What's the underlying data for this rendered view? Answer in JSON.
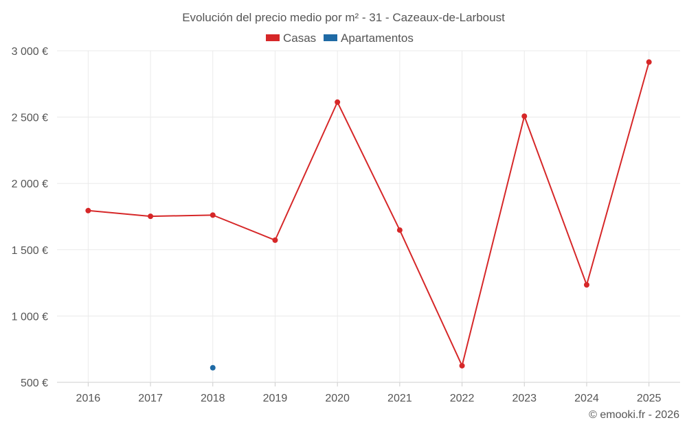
{
  "chart_data": {
    "type": "line",
    "title": "Evolución del precio medio por m² - 31 - Cazeaux-de-Larboust",
    "categories": [
      "2016",
      "2017",
      "2018",
      "2019",
      "2020",
      "2021",
      "2022",
      "2023",
      "2024",
      "2025"
    ],
    "y_ticks": [
      500,
      1000,
      1500,
      2000,
      2500,
      3000
    ],
    "y_tick_labels": [
      "500 €",
      "1 000 €",
      "1 500 €",
      "2 000 €",
      "2 500 €",
      "3 000 €"
    ],
    "ylim": [
      500,
      3000
    ],
    "grid": true,
    "legend_position": "top-center",
    "series": [
      {
        "name": "Casas",
        "color": "#d62728",
        "values": [
          1795,
          1752,
          1761,
          1572,
          2613,
          1648,
          625,
          2507,
          1235,
          2915
        ]
      },
      {
        "name": "Apartamentos",
        "color": "#1f6aa5",
        "values": [
          null,
          null,
          610,
          null,
          null,
          null,
          null,
          null,
          null,
          null
        ]
      }
    ]
  },
  "credit": "© emooki.fr - 2026"
}
